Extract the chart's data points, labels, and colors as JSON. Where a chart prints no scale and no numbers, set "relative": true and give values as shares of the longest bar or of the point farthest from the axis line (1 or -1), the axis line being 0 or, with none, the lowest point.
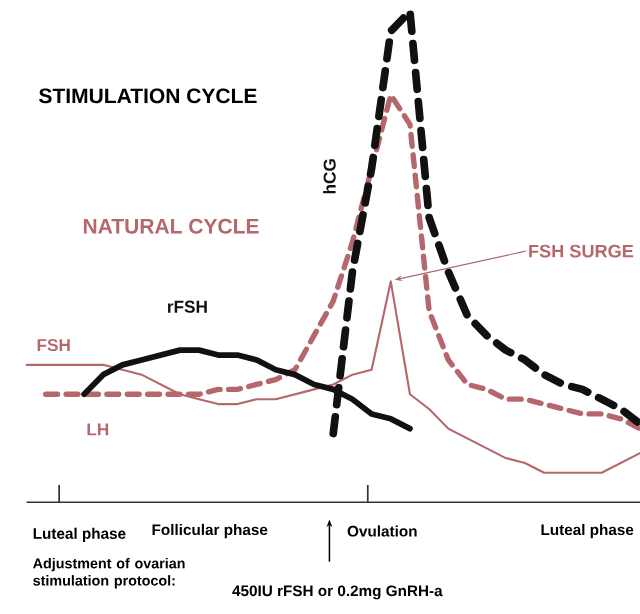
{
  "chart_data": {
    "type": "line",
    "relative": true,
    "categories": [
      null,
      null,
      null,
      null,
      null,
      null,
      null,
      null,
      null,
      null,
      null,
      null,
      null,
      null,
      null,
      null,
      null,
      null,
      null,
      null,
      null,
      null,
      null,
      null,
      null,
      null,
      null,
      null,
      null,
      null,
      null,
      null,
      null
    ],
    "series": [
      {
        "name": "FSH",
        "color": "#b5676b",
        "line_style": "solid",
        "values": [
          0.28,
          0.28,
          0.28,
          0.28,
          0.28,
          0.27,
          0.26,
          0.24,
          0.22,
          0.21,
          0.2,
          0.2,
          0.21,
          0.21,
          0.22,
          0.23,
          0.24,
          0.26,
          0.27,
          0.45,
          0.22,
          0.19,
          0.15,
          0.13,
          0.11,
          0.09,
          0.08,
          0.06,
          0.06,
          0.06,
          0.06,
          0.08,
          0.1
        ]
      },
      {
        "name": "LH",
        "color": "#b5676b",
        "line_style": "dashed",
        "values": [
          null,
          0.22,
          0.22,
          0.22,
          0.22,
          0.22,
          0.22,
          0.22,
          0.22,
          0.22,
          0.23,
          0.23,
          0.24,
          0.25,
          0.27,
          0.34,
          0.41,
          0.53,
          0.68,
          0.83,
          0.77,
          0.39,
          0.29,
          0.24,
          0.23,
          0.21,
          0.21,
          0.2,
          0.19,
          0.18,
          0.18,
          0.17,
          0.15
        ]
      },
      {
        "name": "rFSH",
        "color": "#111111",
        "line_style": "solid",
        "values": [
          null,
          null,
          null,
          0.22,
          0.26,
          0.28,
          0.29,
          0.3,
          0.31,
          0.31,
          0.3,
          0.3,
          0.29,
          0.27,
          0.26,
          0.24,
          0.23,
          0.21,
          0.18,
          0.17,
          0.15,
          null,
          null,
          null,
          null,
          null,
          null,
          null,
          null,
          null,
          null,
          null,
          null
        ]
      },
      {
        "name": "hCG",
        "color": "#111111",
        "line_style": "dashed",
        "values": [
          null,
          null,
          null,
          null,
          null,
          null,
          null,
          null,
          null,
          null,
          null,
          null,
          null,
          null,
          null,
          null,
          0.14,
          0.47,
          0.68,
          0.96,
          1.0,
          0.58,
          0.47,
          0.38,
          0.34,
          0.31,
          0.29,
          0.26,
          0.24,
          0.23,
          0.21,
          0.19,
          0.16
        ]
      }
    ],
    "annotations": [
      "STIMULATION CYCLE",
      "NATURAL CYCLE",
      "FSH SURGE",
      "Luteal phase",
      "Follicular phase",
      "Ovulation",
      "Luteal phase",
      "Adjustment of ovarian stimulation protocol:",
      "450IU rFSH or 0.2mg GnRH-a"
    ]
  }
}
